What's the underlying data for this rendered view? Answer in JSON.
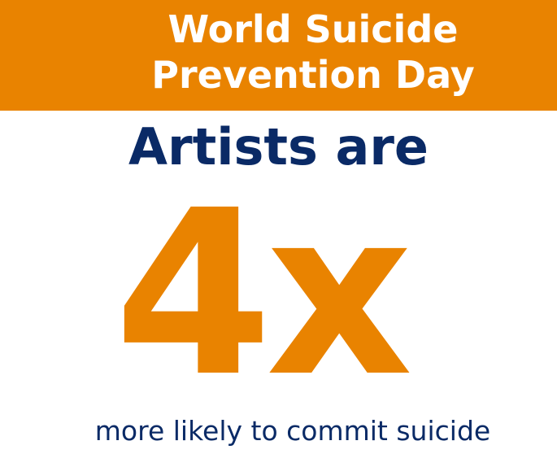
{
  "banner": {
    "title_line1": "World Suicide",
    "title_line2": "Prevention Day",
    "color": "#e98300"
  },
  "headline": "Artists are",
  "stat": "4x",
  "subtext": "more likely to commit suicide",
  "colors": {
    "navy": "#0a2a66",
    "orange": "#e98300"
  }
}
